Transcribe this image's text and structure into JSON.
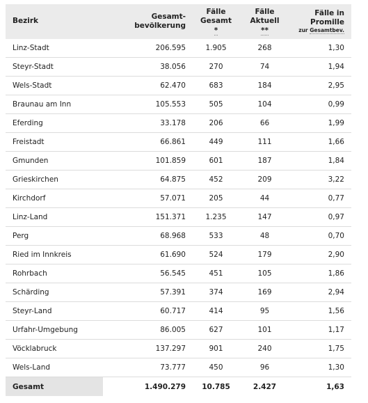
{
  "header": {
    "bezirk": "Bezirk",
    "gesamt_line1": "Gesamt-",
    "gesamt_line2": "bevölkerung",
    "faelle_line1": "Fälle",
    "faelle_line2": "Gesamt",
    "faelle_mark": "*",
    "aktuell_line1": "Fälle",
    "aktuell_line2": "Aktuell",
    "aktuell_mark": "**",
    "promille_line1": "Fälle in Promille",
    "promille_sub1": "zur",
    "promille_sub2": "Gesamtbev."
  },
  "rows": [
    {
      "bezirk": "Linz-Stadt",
      "bevoelkerung": "206.595",
      "faelle": "1.905",
      "aktuell": "268",
      "promille": "1,30"
    },
    {
      "bezirk": "Steyr-Stadt",
      "bevoelkerung": "38.056",
      "faelle": "270",
      "aktuell": "74",
      "promille": "1,94"
    },
    {
      "bezirk": "Wels-Stadt",
      "bevoelkerung": "62.470",
      "faelle": "683",
      "aktuell": "184",
      "promille": "2,95"
    },
    {
      "bezirk": "Braunau am Inn",
      "bevoelkerung": "105.553",
      "faelle": "505",
      "aktuell": "104",
      "promille": "0,99"
    },
    {
      "bezirk": "Eferding",
      "bevoelkerung": "33.178",
      "faelle": "206",
      "aktuell": "66",
      "promille": "1,99"
    },
    {
      "bezirk": "Freistadt",
      "bevoelkerung": "66.861",
      "faelle": "449",
      "aktuell": "111",
      "promille": "1,66"
    },
    {
      "bezirk": "Gmunden",
      "bevoelkerung": "101.859",
      "faelle": "601",
      "aktuell": "187",
      "promille": "1,84"
    },
    {
      "bezirk": "Grieskirchen",
      "bevoelkerung": "64.875",
      "faelle": "452",
      "aktuell": "209",
      "promille": "3,22"
    },
    {
      "bezirk": "Kirchdorf",
      "bevoelkerung": "57.071",
      "faelle": "205",
      "aktuell": "44",
      "promille": "0,77"
    },
    {
      "bezirk": "Linz-Land",
      "bevoelkerung": "151.371",
      "faelle": "1.235",
      "aktuell": "147",
      "promille": "0,97"
    },
    {
      "bezirk": "Perg",
      "bevoelkerung": "68.968",
      "faelle": "533",
      "aktuell": "48",
      "promille": "0,70"
    },
    {
      "bezirk": "Ried im Innkreis",
      "bevoelkerung": "61.690",
      "faelle": "524",
      "aktuell": "179",
      "promille": "2,90"
    },
    {
      "bezirk": "Rohrbach",
      "bevoelkerung": "56.545",
      "faelle": "451",
      "aktuell": "105",
      "promille": "1,86"
    },
    {
      "bezirk": "Schärding",
      "bevoelkerung": "57.391",
      "faelle": "374",
      "aktuell": "169",
      "promille": "2,94"
    },
    {
      "bezirk": "Steyr-Land",
      "bevoelkerung": "60.717",
      "faelle": "414",
      "aktuell": "95",
      "promille": "1,56"
    },
    {
      "bezirk": "Urfahr-Umgebung",
      "bevoelkerung": "86.005",
      "faelle": "627",
      "aktuell": "101",
      "promille": "1,17"
    },
    {
      "bezirk": "Vöcklabruck",
      "bevoelkerung": "137.297",
      "faelle": "901",
      "aktuell": "240",
      "promille": "1,75"
    },
    {
      "bezirk": "Wels-Land",
      "bevoelkerung": "73.777",
      "faelle": "450",
      "aktuell": "96",
      "promille": "1,30"
    }
  ],
  "footer": {
    "label": "Gesamt",
    "bevoelkerung": "1.490.279",
    "faelle": "10.785",
    "aktuell": "2.427",
    "promille": "1,63"
  }
}
